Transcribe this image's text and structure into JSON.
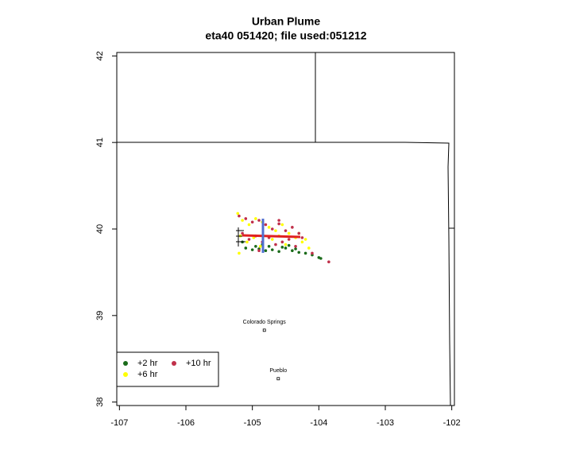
{
  "chart_data": {
    "type": "scatter",
    "title": "Urban Plume",
    "subtitle": "eta40 051420; file used:051212",
    "xlim": [
      -107.04,
      -101.96
    ],
    "ylim": [
      37.96,
      42.04
    ],
    "xticks": [
      -107,
      -106,
      -105,
      -104,
      -103,
      -102
    ],
    "yticks": [
      38,
      39,
      40,
      41,
      42
    ],
    "series": [
      {
        "name": "+2 hr",
        "color": "#1a6b1a",
        "x": [
          -105.1,
          -105.0,
          -104.9,
          -104.8,
          -104.7,
          -104.6,
          -104.5,
          -104.4,
          -104.3,
          -104.2,
          -104.1,
          -104.0,
          -103.97,
          -104.85,
          -104.75,
          -104.55,
          -104.45,
          -104.35,
          -105.15,
          -104.95
        ],
        "values": [
          39.78,
          39.76,
          39.77,
          39.75,
          39.76,
          39.74,
          39.78,
          39.75,
          39.73,
          39.72,
          39.7,
          39.67,
          39.66,
          39.82,
          39.8,
          39.79,
          39.81,
          39.77,
          39.85,
          39.8
        ]
      },
      {
        "name": "+6 hr",
        "color": "#ffff00",
        "x": [
          -105.22,
          -105.15,
          -105.05,
          -104.95,
          -104.85,
          -104.75,
          -104.65,
          -104.55,
          -104.45,
          -104.35,
          -104.25,
          -104.2,
          -105.18,
          -105.08,
          -104.98,
          -104.88,
          -104.7,
          -104.5,
          -104.3,
          -104.15,
          -105.2,
          -104.6
        ],
        "values": [
          40.18,
          40.1,
          40.05,
          40.12,
          40.08,
          40.02,
          39.98,
          40.05,
          39.95,
          39.9,
          39.85,
          39.88,
          39.92,
          39.85,
          39.9,
          39.8,
          39.88,
          39.82,
          39.95,
          39.78,
          39.72,
          39.92
        ]
      },
      {
        "name": "+10 hr",
        "color": "#c0304a",
        "x": [
          -105.2,
          -105.1,
          -105.0,
          -104.9,
          -104.8,
          -104.7,
          -104.6,
          -104.5,
          -104.4,
          -104.3,
          -104.25,
          -105.15,
          -105.05,
          -104.95,
          -104.85,
          -104.75,
          -104.65,
          -104.55,
          -104.45,
          -104.35,
          -104.1,
          -103.85,
          -104.6,
          -104.9
        ],
        "values": [
          40.15,
          40.12,
          40.08,
          40.1,
          40.05,
          40.0,
          40.06,
          39.98,
          40.02,
          39.95,
          39.9,
          39.95,
          39.88,
          39.92,
          39.85,
          39.9,
          39.82,
          39.85,
          39.88,
          39.8,
          39.72,
          39.62,
          40.1,
          39.75
        ]
      }
    ],
    "cities": [
      {
        "name": "Colorado Springs",
        "lon": -104.82,
        "lat": 38.83
      },
      {
        "name": "Pueblo",
        "lon": -104.61,
        "lat": 38.27
      }
    ],
    "legend": "bottom-left"
  }
}
